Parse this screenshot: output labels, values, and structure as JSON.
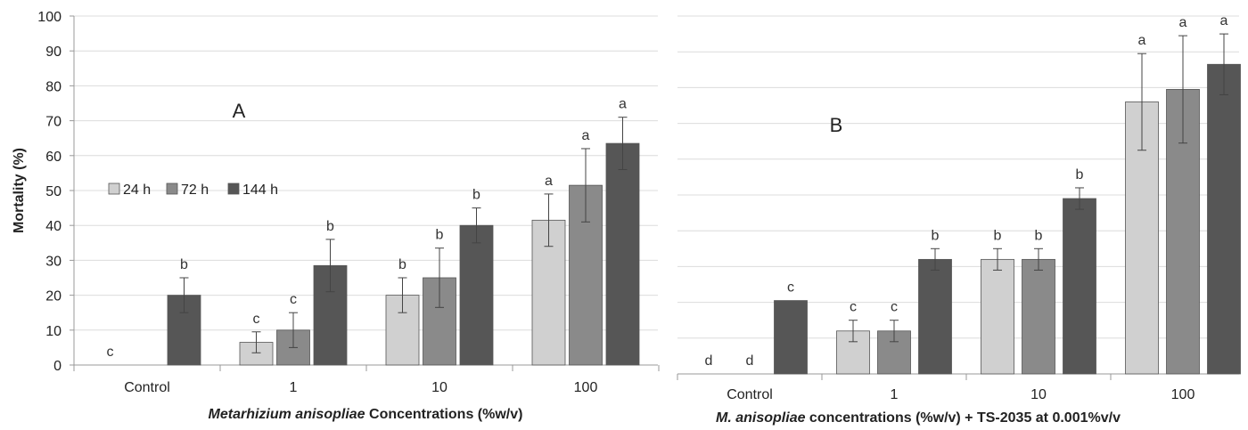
{
  "chart_data": [
    {
      "type": "bar",
      "panel_label": "A",
      "ylabel": "Mortality (%)",
      "xlabel_italic": "Metarhizium anisopliae",
      "xlabel_rest": " Concentrations (%w/v)",
      "ylim": [
        0,
        100
      ],
      "yticks": [
        0,
        10,
        20,
        30,
        40,
        50,
        60,
        70,
        80,
        90,
        100
      ],
      "grid": true,
      "legend_position": "upper-left",
      "categories": [
        "Control",
        "1",
        "10",
        "100"
      ],
      "series": [
        {
          "name": "24 h",
          "color": "#d0d0d0",
          "values": [
            0,
            6.5,
            20,
            41.5
          ],
          "errors": [
            0,
            3,
            5,
            7.5
          ],
          "labels": [
            "c",
            "c",
            "b",
            "a"
          ]
        },
        {
          "name": "72 h",
          "color": "#8a8a8a",
          "values": [
            0,
            10,
            25,
            51.5
          ],
          "errors": [
            0,
            5,
            8.5,
            10.5
          ],
          "labels": [
            "",
            "c",
            "b",
            "a"
          ]
        },
        {
          "name": "144 h",
          "color": "#565656",
          "values": [
            20,
            28.5,
            40,
            63.5
          ],
          "errors": [
            5,
            7.5,
            5,
            7.5
          ],
          "labels": [
            "b",
            "b",
            "b",
            "a"
          ]
        }
      ]
    },
    {
      "type": "bar",
      "panel_label": "B",
      "ylabel": "",
      "xlabel_italic": "M. anisopliae",
      "xlabel_rest": " concentrations (%w/v) + TS-2035 at 0.001%v/v",
      "ylim": [
        0,
        100
      ],
      "yticks": [],
      "grid": true,
      "legend_position": "none",
      "categories": [
        "Control",
        "1",
        "10",
        "100"
      ],
      "series": [
        {
          "name": "24 h",
          "color": "#d0d0d0",
          "values": [
            0,
            12,
            32,
            76
          ],
          "errors": [
            0,
            3,
            3,
            13.5
          ],
          "labels": [
            "d",
            "c",
            "b",
            "a"
          ]
        },
        {
          "name": "72 h",
          "color": "#8a8a8a",
          "values": [
            0,
            12,
            32,
            79.5
          ],
          "errors": [
            0,
            3,
            3,
            15
          ],
          "labels": [
            "d",
            "c",
            "b",
            "a"
          ]
        },
        {
          "name": "144 h",
          "color": "#565656",
          "values": [
            20.5,
            32,
            49,
            86.5
          ],
          "errors": [
            0,
            3,
            3,
            8.5
          ],
          "labels": [
            "c",
            "b",
            "b",
            "a"
          ]
        }
      ]
    }
  ]
}
